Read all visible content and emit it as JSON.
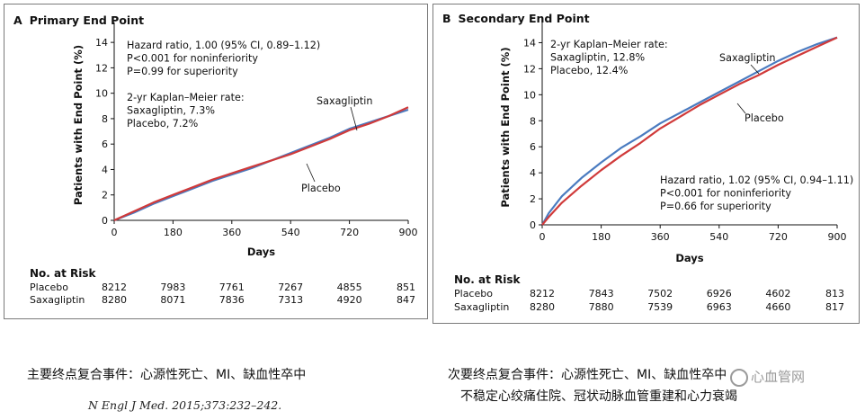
{
  "chart_data": [
    {
      "type": "line",
      "panel_label": "A",
      "title": "Primary End Point",
      "xlabel": "Days",
      "ylabel": "Patients with End Point (%)",
      "xlim": [
        0,
        900
      ],
      "ylim": [
        0,
        15
      ],
      "xticks": [
        0,
        180,
        360,
        540,
        720,
        900
      ],
      "yticks": [
        0,
        2,
        4,
        6,
        8,
        10,
        12,
        14
      ],
      "annotations": {
        "hazard": [
          "Hazard ratio, 1.00 (95% CI, 0.89–1.12)",
          "P<0.001 for noninferiority",
          "P=0.99 for superiority"
        ],
        "km": [
          "2-yr Kaplan–Meier rate:",
          "Saxagliptin, 7.3%",
          "Placebo, 7.2%"
        ]
      },
      "series": [
        {
          "name": "Saxagliptin",
          "color": "#4a7bc0",
          "x": [
            0,
            60,
            120,
            180,
            240,
            300,
            360,
            420,
            480,
            540,
            600,
            660,
            720,
            780,
            840,
            900
          ],
          "y": [
            0,
            0.6,
            1.3,
            1.9,
            2.5,
            3.1,
            3.6,
            4.1,
            4.7,
            5.3,
            5.9,
            6.5,
            7.2,
            7.7,
            8.2,
            8.7
          ]
        },
        {
          "name": "Placebo",
          "color": "#d03a3a",
          "x": [
            0,
            60,
            120,
            180,
            240,
            300,
            360,
            420,
            480,
            540,
            600,
            660,
            720,
            780,
            840,
            900
          ],
          "y": [
            0,
            0.7,
            1.4,
            2.0,
            2.6,
            3.2,
            3.7,
            4.2,
            4.7,
            5.2,
            5.8,
            6.4,
            7.1,
            7.6,
            8.2,
            8.9
          ]
        }
      ],
      "series_labels": [
        "Saxagliptin",
        "Placebo"
      ],
      "risk_table": {
        "heading": "No. at Risk",
        "rows": [
          {
            "name": "Placebo",
            "values": [
              8212,
              7983,
              7761,
              7267,
              4855,
              851
            ]
          },
          {
            "name": "Saxagliptin",
            "values": [
              8280,
              8071,
              7836,
              7313,
              4920,
              847
            ]
          }
        ]
      }
    },
    {
      "type": "line",
      "panel_label": "B",
      "title": "Secondary End Point",
      "xlabel": "Days",
      "ylabel": "Patients with End Point (%)",
      "xlim": [
        0,
        900
      ],
      "ylim": [
        0,
        15
      ],
      "xticks": [
        0,
        180,
        360,
        540,
        720,
        900
      ],
      "yticks": [
        0,
        2,
        4,
        6,
        8,
        10,
        12,
        14
      ],
      "annotations": {
        "km": [
          "2-yr Kaplan–Meier rate:",
          "Saxagliptin, 12.8%",
          "Placebo, 12.4%"
        ],
        "hazard": [
          "Hazard ratio, 1.02 (95% CI, 0.94–1.11)",
          "P<0.001 for noninferiority",
          "P=0.66 for superiority"
        ]
      },
      "series": [
        {
          "name": "Saxagliptin",
          "color": "#4a7bc0",
          "x": [
            0,
            20,
            60,
            120,
            180,
            240,
            300,
            360,
            420,
            480,
            540,
            600,
            660,
            720,
            780,
            840,
            900
          ],
          "y": [
            0,
            0.9,
            2.2,
            3.6,
            4.8,
            5.9,
            6.8,
            7.8,
            8.6,
            9.4,
            10.2,
            11.0,
            11.8,
            12.6,
            13.3,
            13.9,
            14.4
          ]
        },
        {
          "name": "Placebo",
          "color": "#d03a3a",
          "x": [
            0,
            20,
            60,
            120,
            180,
            240,
            300,
            360,
            420,
            480,
            540,
            600,
            660,
            720,
            780,
            840,
            900
          ],
          "y": [
            0,
            0.6,
            1.7,
            3.0,
            4.2,
            5.3,
            6.3,
            7.4,
            8.3,
            9.2,
            10.0,
            10.8,
            11.5,
            12.3,
            13.0,
            13.7,
            14.4
          ]
        }
      ],
      "series_labels": [
        "Saxagliptin",
        "Placebo"
      ],
      "risk_table": {
        "heading": "No. at Risk",
        "rows": [
          {
            "name": "Placebo",
            "values": [
              8212,
              7843,
              7502,
              6926,
              4602,
              813
            ]
          },
          {
            "name": "Saxagliptin",
            "values": [
              8280,
              7880,
              7539,
              6963,
              4660,
              817
            ]
          }
        ]
      }
    }
  ],
  "captions": {
    "primary_cn": "主要终点复合事件：心源性死亡、MI、缺血性卒中",
    "citation": "N Engl J Med. 2015;373:232–242.",
    "secondary_cn_line1": "次要终点复合事件：心源性死亡、MI、缺血性卒中",
    "secondary_cn_line2": "不稳定心绞痛住院、冠状动脉血管重建和心力衰竭",
    "watermark": "心血管网"
  }
}
